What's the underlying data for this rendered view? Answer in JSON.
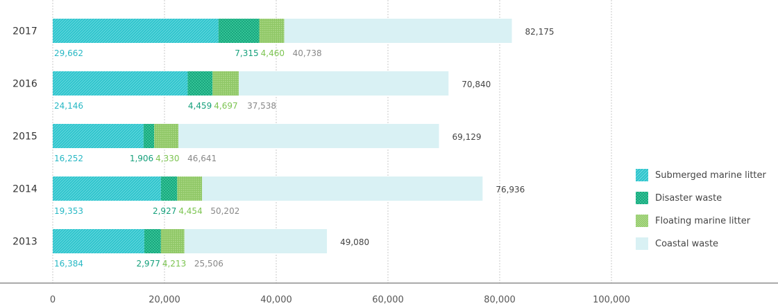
{
  "chart_data": {
    "type": "bar",
    "orientation": "horizontal",
    "stacked": true,
    "categories": [
      "2017",
      "2016",
      "2015",
      "2014",
      "2013"
    ],
    "series": [
      {
        "name": "Submerged marine litter",
        "values": [
          29662,
          24146,
          16252,
          19353,
          16384
        ],
        "color": "#2ec4cc",
        "value_color": "#27b8c4",
        "pattern": "diagonal"
      },
      {
        "name": "Disaster waste",
        "values": [
          7315,
          4459,
          1906,
          2927,
          2977
        ],
        "color": "#1cae86",
        "value_color": "#15a07b",
        "pattern": "grid"
      },
      {
        "name": "Floating marine litter",
        "values": [
          4460,
          4697,
          4330,
          4454,
          4213
        ],
        "color": "#96cc6e",
        "value_color": "#7cc451",
        "pattern": "dots"
      },
      {
        "name": "Coastal waste",
        "values": [
          40738,
          37538,
          46641,
          50202,
          25506
        ],
        "color": "#d9f1f4",
        "value_color": "#888888",
        "pattern": "solid"
      }
    ],
    "totals": [
      "82,175",
      "70,840",
      "69,129",
      "76,936",
      "49,080"
    ],
    "value_labels": [
      [
        "29,662",
        "7,315",
        "4,460",
        "40,738"
      ],
      [
        "24,146",
        "4,459",
        "4,697",
        "37,538"
      ],
      [
        "16,252",
        "1,906",
        "4,330",
        "46,641"
      ],
      [
        "19,353",
        "2,927",
        "4,454",
        "50,202"
      ],
      [
        "16,384",
        "2,977",
        "4,213",
        "25,506"
      ]
    ],
    "xlim": [
      0,
      100000
    ],
    "xticks": [
      0,
      20000,
      40000,
      60000,
      80000,
      100000
    ],
    "xtick_labels": [
      "0",
      "20,000",
      "40,000",
      "60,000",
      "80,000",
      "100,000"
    ],
    "grid": true,
    "legend_position": "right"
  }
}
